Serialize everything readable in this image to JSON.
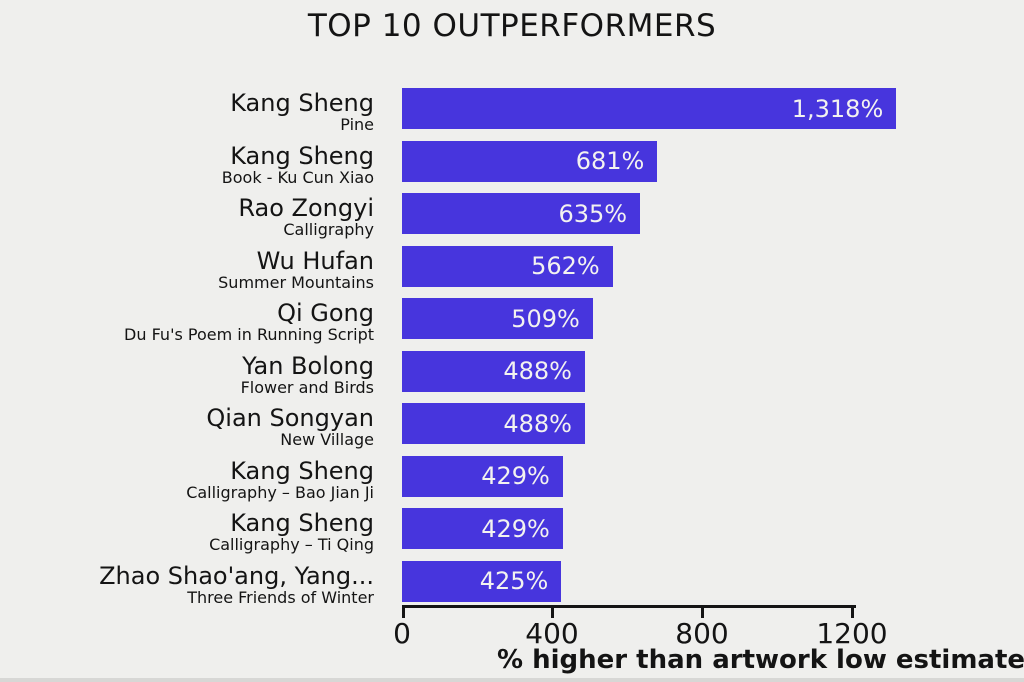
{
  "chart_data": {
    "type": "bar",
    "orientation": "horizontal",
    "title": "TOP 10 OUTPERFORMERS",
    "xlabel": "% higher than artwork low estimate",
    "xlim": [
      0,
      1200
    ],
    "xticks": [
      {
        "value": 0,
        "label": "0"
      },
      {
        "value": 400,
        "label": "400"
      },
      {
        "value": 800,
        "label": "800"
      },
      {
        "value": 1200,
        "label": "1200"
      }
    ],
    "grid": false,
    "legend": null,
    "bars": [
      {
        "artist": "Kang Sheng",
        "artwork": "Pine",
        "value": 1318,
        "label": "1,318%"
      },
      {
        "artist": "Kang Sheng",
        "artwork": "Book - Ku Cun Xiao",
        "value": 681,
        "label": "681%"
      },
      {
        "artist": "Rao Zongyi",
        "artwork": "Calligraphy",
        "value": 635,
        "label": "635%"
      },
      {
        "artist": "Wu Hufan",
        "artwork": "Summer Mountains",
        "value": 562,
        "label": "562%"
      },
      {
        "artist": "Qi Gong",
        "artwork": "Du Fu's Poem in Running Script",
        "value": 509,
        "label": "509%"
      },
      {
        "artist": "Yan Bolong",
        "artwork": "Flower and Birds",
        "value": 488,
        "label": "488%"
      },
      {
        "artist": "Qian Songyan",
        "artwork": "New Village",
        "value": 488,
        "label": "488%"
      },
      {
        "artist": "Kang Sheng",
        "artwork": "Calligraphy – Bao Jian Ji",
        "value": 429,
        "label": "429%"
      },
      {
        "artist": "Kang Sheng",
        "artwork": "Calligraphy – Ti Qing",
        "value": 429,
        "label": "429%"
      },
      {
        "artist": "Zhao Shao'ang, Yang...",
        "artwork": "Three Friends of Winter",
        "value": 425,
        "label": "425%"
      }
    ],
    "colors": {
      "bar": "#4735dd",
      "background": "#efefed",
      "text": "#141414",
      "value_text": "#f3f2f0"
    }
  }
}
